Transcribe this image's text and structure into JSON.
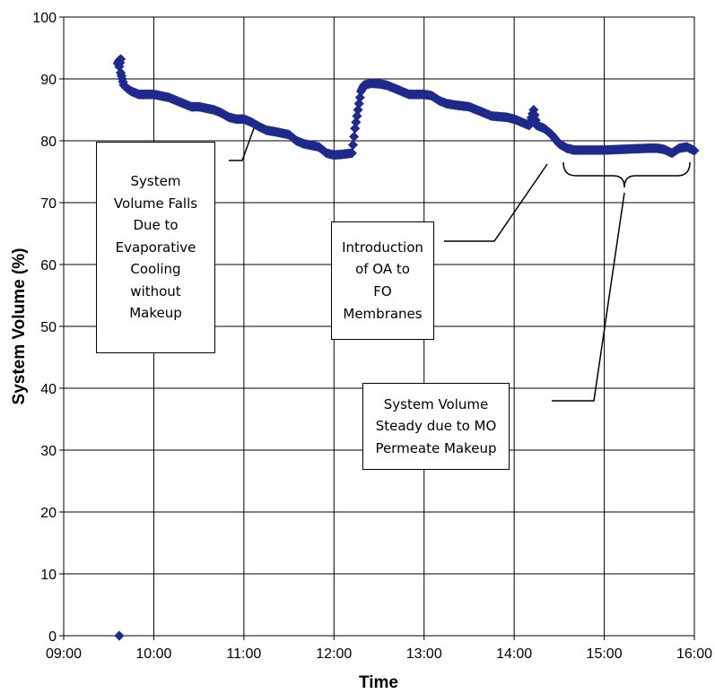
{
  "chart_data": {
    "type": "scatter",
    "xlabel": "Time",
    "ylabel": "System Volume (%)",
    "x_ticks": [
      "09:00",
      "10:00",
      "11:00",
      "12:00",
      "13:00",
      "14:00",
      "15:00",
      "16:00"
    ],
    "y_ticks": [
      0,
      10,
      20,
      30,
      40,
      50,
      60,
      70,
      80,
      90,
      100
    ],
    "xlim": [
      "09:00",
      "16:00"
    ],
    "ylim": [
      0,
      100
    ],
    "grid": true,
    "marker": "diamond",
    "color": "#1f2a8c",
    "series": [
      {
        "x": [
          "09:36",
          "09:37",
          "09:37",
          "09:38",
          "09:38",
          "09:39",
          "09:40",
          "09:42",
          "09:45",
          "09:50",
          "09:55",
          "10:00",
          "10:10",
          "10:20",
          "10:25",
          "10:30",
          "10:40",
          "10:45",
          "10:50",
          "10:55",
          "11:00",
          "11:05",
          "11:10",
          "11:15",
          "11:20",
          "11:30",
          "11:35",
          "11:40",
          "11:50",
          "11:55",
          "12:00",
          "12:05",
          "12:12",
          "12:14",
          "12:16",
          "12:18",
          "12:20",
          "12:25",
          "12:30",
          "12:35",
          "12:40",
          "12:45",
          "12:50",
          "12:55",
          "13:00",
          "13:05",
          "13:10",
          "13:15",
          "13:20",
          "13:30",
          "13:35",
          "13:45",
          "13:55",
          "14:00",
          "14:05",
          "14:10",
          "14:13",
          "14:15",
          "14:20",
          "14:25",
          "14:30",
          "14:35",
          "14:40",
          "14:50",
          "15:00",
          "15:10",
          "15:20",
          "15:30",
          "15:35",
          "15:40",
          "15:45",
          "15:50",
          "15:55",
          "16:00"
        ],
        "y": [
          92.5,
          93,
          92,
          93.2,
          91,
          90,
          89,
          88.5,
          88,
          87.5,
          87.5,
          87.5,
          87,
          86,
          85.5,
          85.5,
          85,
          84.5,
          83.8,
          83.5,
          83.5,
          83,
          82.3,
          81.7,
          81.5,
          81,
          80,
          79.5,
          79,
          78,
          77.7,
          77.8,
          78,
          82,
          85,
          88,
          89,
          89.3,
          89.2,
          89,
          88.5,
          88,
          87.5,
          87.5,
          87.5,
          87.3,
          86.5,
          86,
          85.8,
          85.5,
          85,
          84,
          83.8,
          83.5,
          83,
          82.5,
          85,
          82.5,
          82,
          81,
          79.5,
          78.8,
          78.5,
          78.5,
          78.5,
          78.6,
          78.7,
          78.8,
          78.8,
          78.6,
          78,
          78.8,
          79,
          78.4
        ]
      },
      {
        "x": [
          "09:37"
        ],
        "y": [
          0
        ]
      }
    ],
    "annotations": [
      {
        "lines": [
          "System",
          "Volume Falls",
          "Due to",
          "Evaporative",
          "Cooling",
          "without",
          "Makeup"
        ]
      },
      {
        "lines": [
          "Introduction",
          "of OA to",
          "FO",
          "Membranes"
        ]
      },
      {
        "lines": [
          "System Volume",
          "Steady due to MO",
          "Permeate Makeup"
        ]
      }
    ]
  }
}
